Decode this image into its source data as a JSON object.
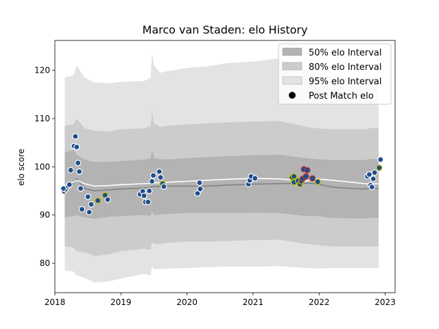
{
  "chart_data": {
    "type": "line",
    "title": "Marco van Staden: elo History",
    "xlabel": "",
    "ylabel": "elo score",
    "xlim": [
      2018.0,
      2023.15
    ],
    "ylim": [
      73.9,
      126.2
    ],
    "x_ticks": [
      2018,
      2019,
      2020,
      2021,
      2022,
      2023
    ],
    "x_tick_labels": [
      "2018",
      "2019",
      "2020",
      "2021",
      "2022",
      "2023"
    ],
    "y_ticks": [
      80,
      90,
      100,
      110,
      120
    ],
    "y_tick_labels": [
      "80",
      "90",
      "100",
      "110",
      "120"
    ],
    "grid": false,
    "legend_position": "top-right",
    "legend": [
      {
        "label": "50% elo Interval",
        "kind": "band",
        "color": "#b3b3b3"
      },
      {
        "label": "80% elo Interval",
        "kind": "band",
        "color": "#cccccc"
      },
      {
        "label": "95% elo Interval",
        "kind": "band",
        "color": "#e3e3e3"
      },
      {
        "label": "Post Match elo",
        "kind": "marker",
        "color": "#000000"
      }
    ],
    "colors": {
      "band95": "#e3e3e3",
      "band80": "#cccccc",
      "band50": "#b3b3b3",
      "mean_line": "#ffffff",
      "median_line": "#808080",
      "marker_fill": "#1f4e8c",
      "win_edge": "#ffffff",
      "draw_edge": "#c8c800",
      "loss_edge": "#cc3333"
    },
    "bands": {
      "x": [
        2018.15,
        2018.28,
        2018.33,
        2018.45,
        2018.6,
        2018.8,
        2019.0,
        2019.35,
        2019.45,
        2019.47,
        2019.5,
        2019.6,
        2019.7,
        2020.0,
        2020.3,
        2020.6,
        2021.0,
        2021.4,
        2021.8,
        2021.95,
        2022.2,
        2022.5,
        2022.7,
        2022.75,
        2022.9
      ],
      "lo95": [
        78.5,
        78.3,
        77.5,
        77.0,
        76.0,
        76.2,
        76.8,
        77.8,
        77.5,
        79.5,
        78.8,
        78.8,
        78.9,
        79.0,
        79.2,
        79.3,
        79.3,
        79.4,
        79.0,
        78.9,
        79.0,
        79.0,
        79.0,
        79.0,
        79.0
      ],
      "lo80": [
        83.5,
        83.3,
        82.5,
        82.3,
        81.5,
        81.8,
        82.5,
        83.0,
        82.8,
        84.5,
        84.0,
        84.0,
        84.2,
        84.5,
        84.5,
        84.6,
        84.8,
        84.9,
        84.0,
        83.8,
        83.5,
        83.5,
        83.5,
        83.5,
        83.5
      ],
      "lo50": [
        89.5,
        89.8,
        90.0,
        89.5,
        89.2,
        89.6,
        89.8,
        90.0,
        89.8,
        90.8,
        90.0,
        90.1,
        90.2,
        90.4,
        90.4,
        90.4,
        90.5,
        90.4,
        89.8,
        89.8,
        89.4,
        89.3,
        89.3,
        89.4,
        89.4
      ],
      "hi50": [
        103.0,
        103.5,
        102.5,
        101.5,
        101.0,
        101.0,
        101.2,
        101.5,
        101.7,
        103.5,
        101.8,
        101.6,
        101.5,
        101.8,
        102.0,
        102.2,
        102.4,
        102.5,
        101.8,
        101.6,
        101.4,
        101.4,
        101.4,
        101.6,
        101.6
      ],
      "hi80": [
        108.5,
        108.8,
        110.0,
        108.0,
        107.5,
        107.3,
        107.8,
        108.0,
        108.5,
        111.5,
        109.0,
        108.3,
        108.5,
        108.8,
        109.0,
        109.2,
        109.4,
        109.5,
        108.3,
        108.0,
        107.8,
        107.8,
        107.8,
        108.0,
        108.0
      ],
      "hi95": [
        118.5,
        119.0,
        121.0,
        118.5,
        117.5,
        117.3,
        117.6,
        117.8,
        118.5,
        123.7,
        121.0,
        119.5,
        119.8,
        120.5,
        120.8,
        121.5,
        121.8,
        122.5,
        120.0,
        119.7,
        118.5,
        118.3,
        118.3,
        118.3,
        118.3
      ],
      "mean": [
        96.2,
        96.8,
        97.2,
        96.5,
        96.0,
        96.1,
        96.3,
        96.5,
        96.6,
        96.8,
        96.7,
        96.7,
        96.8,
        97.0,
        97.2,
        97.4,
        97.6,
        97.5,
        97.0,
        97.5,
        97.2,
        96.8,
        96.5,
        96.5,
        96.5
      ],
      "median": [
        95.6,
        96.5,
        97.5,
        95.5,
        95.0,
        95.2,
        95.4,
        95.6,
        95.7,
        96.0,
        95.9,
        95.9,
        96.0,
        96.0,
        96.0,
        96.2,
        96.4,
        96.5,
        96.6,
        96.5,
        95.8,
        95.5,
        95.4,
        95.5,
        95.5
      ]
    },
    "points": [
      {
        "x": 2018.14,
        "y": 94.9,
        "edge": "win"
      },
      {
        "x": 2018.16,
        "y": 95.3,
        "edge": "win"
      },
      {
        "x": 2018.13,
        "y": 95.5,
        "edge": "win"
      },
      {
        "x": 2018.2,
        "y": 96.0,
        "edge": "win"
      },
      {
        "x": 2018.22,
        "y": 96.3,
        "edge": "win"
      },
      {
        "x": 2018.24,
        "y": 99.3,
        "edge": "win"
      },
      {
        "x": 2018.29,
        "y": 104.3,
        "edge": "win"
      },
      {
        "x": 2018.31,
        "y": 106.3,
        "edge": "win"
      },
      {
        "x": 2018.33,
        "y": 104.1,
        "edge": "win"
      },
      {
        "x": 2018.35,
        "y": 100.8,
        "edge": "win"
      },
      {
        "x": 2018.37,
        "y": 99.0,
        "edge": "win"
      },
      {
        "x": 2018.39,
        "y": 95.5,
        "edge": "win"
      },
      {
        "x": 2018.41,
        "y": 91.2,
        "edge": "win"
      },
      {
        "x": 2018.5,
        "y": 93.8,
        "edge": "win"
      },
      {
        "x": 2018.52,
        "y": 90.6,
        "edge": "win"
      },
      {
        "x": 2018.55,
        "y": 92.2,
        "edge": "win"
      },
      {
        "x": 2018.65,
        "y": 93.0,
        "edge": "draw"
      },
      {
        "x": 2018.76,
        "y": 94.1,
        "edge": "draw"
      },
      {
        "x": 2018.8,
        "y": 93.2,
        "edge": "win"
      },
      {
        "x": 2019.29,
        "y": 94.3,
        "edge": "win"
      },
      {
        "x": 2019.33,
        "y": 94.9,
        "edge": "win"
      },
      {
        "x": 2019.35,
        "y": 94.0,
        "edge": "win"
      },
      {
        "x": 2019.37,
        "y": 92.7,
        "edge": "win"
      },
      {
        "x": 2019.41,
        "y": 92.7,
        "edge": "win"
      },
      {
        "x": 2019.43,
        "y": 95.0,
        "edge": "win"
      },
      {
        "x": 2019.47,
        "y": 97.0,
        "edge": "win"
      },
      {
        "x": 2019.49,
        "y": 98.2,
        "edge": "win"
      },
      {
        "x": 2019.58,
        "y": 99.0,
        "edge": "win"
      },
      {
        "x": 2019.6,
        "y": 97.8,
        "edge": "win"
      },
      {
        "x": 2019.63,
        "y": 96.5,
        "edge": "draw"
      },
      {
        "x": 2019.65,
        "y": 95.9,
        "edge": "win"
      },
      {
        "x": 2020.16,
        "y": 94.5,
        "edge": "win"
      },
      {
        "x": 2020.19,
        "y": 96.7,
        "edge": "win"
      },
      {
        "x": 2020.2,
        "y": 95.4,
        "edge": "win"
      },
      {
        "x": 2020.93,
        "y": 96.4,
        "edge": "win"
      },
      {
        "x": 2020.95,
        "y": 97.2,
        "edge": "win"
      },
      {
        "x": 2020.97,
        "y": 98.0,
        "edge": "win"
      },
      {
        "x": 2021.03,
        "y": 97.6,
        "edge": "win"
      },
      {
        "x": 2021.59,
        "y": 97.8,
        "edge": "draw"
      },
      {
        "x": 2021.62,
        "y": 98.0,
        "edge": "draw"
      },
      {
        "x": 2021.62,
        "y": 96.8,
        "edge": "draw"
      },
      {
        "x": 2021.68,
        "y": 97.1,
        "edge": "draw"
      },
      {
        "x": 2021.71,
        "y": 96.4,
        "edge": "draw"
      },
      {
        "x": 2021.73,
        "y": 97.0,
        "edge": "draw"
      },
      {
        "x": 2021.75,
        "y": 97.5,
        "edge": "loss"
      },
      {
        "x": 2021.77,
        "y": 99.5,
        "edge": "loss"
      },
      {
        "x": 2021.8,
        "y": 98.0,
        "edge": "loss"
      },
      {
        "x": 2021.82,
        "y": 99.3,
        "edge": "loss"
      },
      {
        "x": 2021.9,
        "y": 97.6,
        "edge": "loss"
      },
      {
        "x": 2021.98,
        "y": 96.9,
        "edge": "draw"
      },
      {
        "x": 2022.73,
        "y": 98.0,
        "edge": "win"
      },
      {
        "x": 2022.76,
        "y": 98.4,
        "edge": "win"
      },
      {
        "x": 2022.78,
        "y": 96.2,
        "edge": "win"
      },
      {
        "x": 2022.8,
        "y": 95.8,
        "edge": "win"
      },
      {
        "x": 2022.82,
        "y": 97.5,
        "edge": "win"
      },
      {
        "x": 2022.84,
        "y": 98.8,
        "edge": "win"
      },
      {
        "x": 2022.91,
        "y": 99.8,
        "edge": "draw"
      },
      {
        "x": 2022.93,
        "y": 101.5,
        "edge": "win"
      }
    ]
  }
}
